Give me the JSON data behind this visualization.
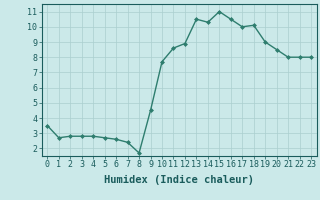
{
  "x": [
    0,
    1,
    2,
    3,
    4,
    5,
    6,
    7,
    8,
    9,
    10,
    11,
    12,
    13,
    14,
    15,
    16,
    17,
    18,
    19,
    20,
    21,
    22,
    23
  ],
  "y": [
    3.5,
    2.7,
    2.8,
    2.8,
    2.8,
    2.7,
    2.6,
    2.4,
    1.7,
    4.5,
    7.7,
    8.6,
    8.9,
    10.5,
    10.3,
    11.0,
    10.5,
    10.0,
    10.1,
    9.0,
    8.5,
    8.0,
    8.0,
    8.0
  ],
  "line_color": "#2E7D6E",
  "marker": "D",
  "marker_size": 2.0,
  "bg_color": "#CBE9E9",
  "grid_color": "#AACFCF",
  "xlabel": "Humidex (Indice chaleur)",
  "xlim": [
    -0.5,
    23.5
  ],
  "ylim": [
    1.5,
    11.5
  ],
  "yticks": [
    2,
    3,
    4,
    5,
    6,
    7,
    8,
    9,
    10,
    11
  ],
  "xticks": [
    0,
    1,
    2,
    3,
    4,
    5,
    6,
    7,
    8,
    9,
    10,
    11,
    12,
    13,
    14,
    15,
    16,
    17,
    18,
    19,
    20,
    21,
    22,
    23
  ],
  "xtick_labels": [
    "0",
    "1",
    "2",
    "3",
    "4",
    "5",
    "6",
    "7",
    "8",
    "9",
    "10",
    "11",
    "12",
    "13",
    "14",
    "15",
    "16",
    "17",
    "18",
    "19",
    "20",
    "21",
    "22",
    "23"
  ],
  "tick_color": "#1A5C5C",
  "label_fontsize": 7.5,
  "tick_fontsize": 6.0,
  "line_width": 1.0,
  "grid_linewidth": 0.5
}
